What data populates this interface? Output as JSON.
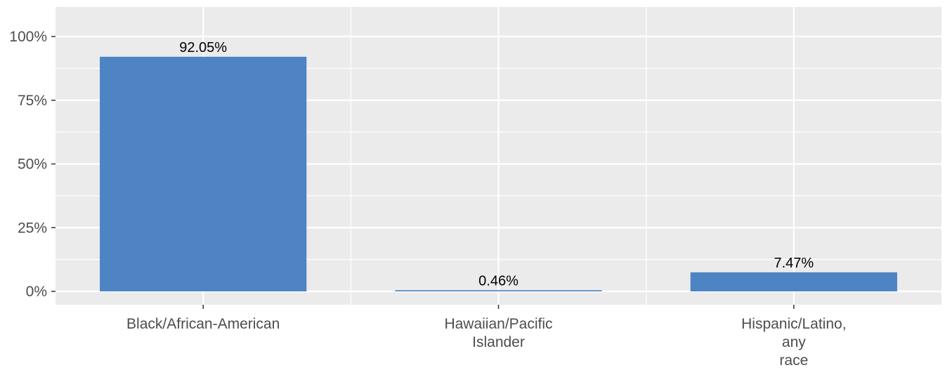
{
  "chart_data": {
    "type": "bar",
    "categories": [
      [
        "Black/African-American"
      ],
      [
        "Hawaiian/Pacific",
        "Islander"
      ],
      [
        "Hispanic/Latino,",
        "any",
        "race"
      ]
    ],
    "values": [
      92.05,
      0.46,
      7.47
    ],
    "data_labels": [
      "92.05%",
      "0.46%",
      "7.47%"
    ],
    "title": "",
    "xlabel": "",
    "ylabel": "",
    "ylim": [
      0,
      105
    ],
    "yticks": [
      0,
      25,
      50,
      75,
      100
    ],
    "ytick_labels": [
      "0%",
      "25%",
      "50%",
      "75%",
      "100%"
    ],
    "grid": true,
    "legend": "none",
    "colors": {
      "bar": "#4e83c4",
      "panel_background": "#ebebeb",
      "gridline": "#ffffff",
      "tick_text": "#4d4d4d"
    }
  }
}
